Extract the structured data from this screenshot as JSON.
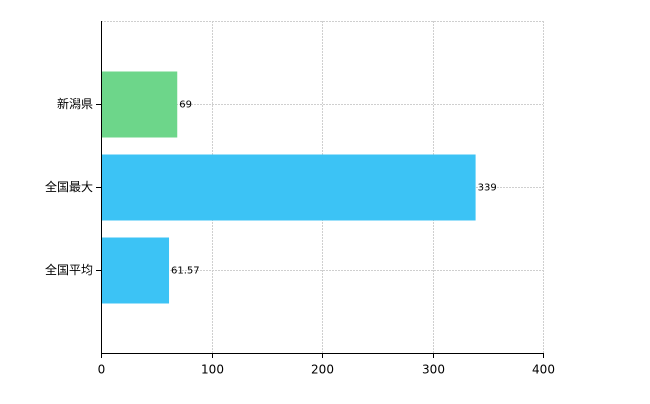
{
  "chart_data": {
    "type": "bar",
    "orientation": "horizontal",
    "categories": [
      "新潟県",
      "全国最大",
      "全国平均"
    ],
    "values": [
      69,
      339,
      61.57
    ],
    "colors": [
      "#6dd68a",
      "#3cc3f5",
      "#3cc3f5"
    ],
    "xlim": [
      0,
      400
    ],
    "xticks": [
      0,
      100,
      200,
      300,
      400
    ],
    "grid": true
  }
}
